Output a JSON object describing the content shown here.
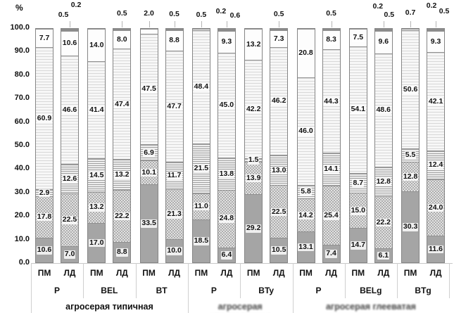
{
  "chart_data": {
    "type": "stacked-bar",
    "title": "",
    "ylabel": "%",
    "ylim": [
      0,
      100
    ],
    "grid": false,
    "legend": "none",
    "y_ticks": [
      "100.0",
      "90.0",
      "80.0",
      "70.0",
      "60.0",
      "50.0",
      "40.0",
      "30.0",
      "20.0",
      "10.0",
      "0.0"
    ],
    "pattern_key": {
      "solid": "dark gray solid (bottom series)",
      "dots": "light gray dotted",
      "hlines": "gray horizontal hatch",
      "flines": "very light fine horizontal hatch (largest series)",
      "white": "white (top series)",
      "cap": "dark gray thin cap (trace series)"
    },
    "groups": [
      {
        "label": "P",
        "section": 0,
        "bars": [
          {
            "sub": "ПМ",
            "segments": [
              {
                "v": 10.6,
                "p": "solid",
                "label": "10.6"
              },
              {
                "v": 17.8,
                "p": "dots",
                "label": "17.8"
              },
              {
                "v": 2.9,
                "p": "hlines",
                "label": "2.9"
              },
              {
                "v": 60.9,
                "p": "flines",
                "label": "60.9"
              },
              {
                "v": 7.7,
                "p": "white",
                "label": "7.7"
              }
            ],
            "top_labels": []
          },
          {
            "sub": "ЛД",
            "segments": [
              {
                "v": 7.0,
                "p": "solid",
                "label": "7.0"
              },
              {
                "v": 22.5,
                "p": "dots",
                "label": "22.5"
              },
              {
                "v": 12.6,
                "p": "hlines",
                "label": "12.6"
              },
              {
                "v": 46.6,
                "p": "flines",
                "label": "46.6"
              },
              {
                "v": 10.6,
                "p": "white",
                "label": "10.6"
              },
              {
                "v": 0.5,
                "p": "cap",
                "label": null
              },
              {
                "v": 0.2,
                "p": "cap",
                "label": null
              }
            ],
            "top_labels": [
              {
                "text": "0.2",
                "dx": 9,
                "dy": 1
              },
              {
                "text": "0.5",
                "dx": -9,
                "dy": 15
              }
            ]
          }
        ]
      },
      {
        "label": "BEL",
        "section": 0,
        "bars": [
          {
            "sub": "ПМ",
            "segments": [
              {
                "v": 17.0,
                "p": "solid",
                "label": "17.0"
              },
              {
                "v": 13.2,
                "p": "dots",
                "label": "13.2"
              },
              {
                "v": 14.5,
                "p": "hlines",
                "label": "14.5"
              },
              {
                "v": 41.4,
                "p": "flines",
                "label": "41.4"
              },
              {
                "v": 14.0,
                "p": "white",
                "label": "14.0"
              }
            ],
            "top_labels": []
          },
          {
            "sub": "ЛД",
            "segments": [
              {
                "v": 8.8,
                "p": "solid",
                "label": "8.8"
              },
              {
                "v": 22.2,
                "p": "dots",
                "label": "22.2"
              },
              {
                "v": 13.2,
                "p": "hlines",
                "label": "13.2"
              },
              {
                "v": 47.4,
                "p": "flines",
                "label": "47.4"
              },
              {
                "v": 8.0,
                "p": "white",
                "label": "8.0"
              },
              {
                "v": 0.5,
                "p": "cap",
                "label": null
              }
            ],
            "top_labels": [
              {
                "text": "0.5",
                "dx": 0,
                "dy": 13
              }
            ]
          }
        ]
      },
      {
        "label": "BT",
        "section": 0,
        "bars": [
          {
            "sub": "ПМ",
            "segments": [
              {
                "v": 33.5,
                "p": "solid",
                "label": "33.5"
              },
              {
                "v": 10.1,
                "p": "dots",
                "label": "10.1"
              },
              {
                "v": 6.9,
                "p": "hlines",
                "label": "6.9"
              },
              {
                "v": 47.5,
                "p": "flines",
                "label": "47.5"
              },
              {
                "v": 2.0,
                "p": "white",
                "label": null
              }
            ],
            "top_labels": [
              {
                "text": "2.0",
                "dx": 0,
                "dy": 13
              }
            ]
          },
          {
            "sub": "ЛД",
            "segments": [
              {
                "v": 10.0,
                "p": "solid",
                "label": "10.0"
              },
              {
                "v": 21.3,
                "p": "dots",
                "label": "21.3"
              },
              {
                "v": 11.7,
                "p": "hlines",
                "label": "11.7"
              },
              {
                "v": 47.7,
                "p": "flines",
                "label": "47.7"
              },
              {
                "v": 8.8,
                "p": "white",
                "label": "8.8"
              },
              {
                "v": 0.5,
                "p": "cap",
                "label": null
              }
            ],
            "top_labels": [
              {
                "text": "0.5",
                "dx": 0,
                "dy": 14
              }
            ]
          }
        ]
      },
      {
        "label": "P",
        "section": 1,
        "bars": [
          {
            "sub": "ПМ",
            "segments": [
              {
                "v": 18.5,
                "p": "solid",
                "label": "18.5"
              },
              {
                "v": 11.0,
                "p": "dots",
                "label": "11.0"
              },
              {
                "v": 21.5,
                "p": "hlines",
                "label": "21.5"
              },
              {
                "v": 48.4,
                "p": "flines",
                "label": "48.4"
              },
              {
                "v": 0.5,
                "p": "white",
                "label": null
              }
            ],
            "top_labels": [
              {
                "text": "0.5",
                "dx": 0,
                "dy": 15
              }
            ]
          },
          {
            "sub": "ЛД",
            "segments": [
              {
                "v": 6.4,
                "p": "solid",
                "label": "6.4"
              },
              {
                "v": 24.8,
                "p": "dots",
                "label": "24.8"
              },
              {
                "v": 13.8,
                "p": "hlines",
                "label": "13.8"
              },
              {
                "v": 45.0,
                "p": "flines",
                "label": "45.0"
              },
              {
                "v": 9.3,
                "p": "white",
                "label": "9.3"
              },
              {
                "v": 0.6,
                "p": "cap",
                "label": null
              },
              {
                "v": 0.2,
                "p": "cap",
                "label": null
              }
            ],
            "top_labels": [
              {
                "text": "0.2",
                "dx": -8,
                "dy": 10
              },
              {
                "text": "0.6",
                "dx": 12,
                "dy": 16
              }
            ]
          }
        ]
      },
      {
        "label": "BTy",
        "section": 1,
        "bars": [
          {
            "sub": "ПМ",
            "segments": [
              {
                "v": 29.2,
                "p": "solid",
                "label": "29.2"
              },
              {
                "v": 13.9,
                "p": "dots",
                "label": "13.9"
              },
              {
                "v": 1.5,
                "p": "hlines",
                "label": "1.5"
              },
              {
                "v": 42.2,
                "p": "flines",
                "label": "42.2"
              },
              {
                "v": 13.2,
                "p": "white",
                "label": "13.2"
              }
            ],
            "top_labels": []
          },
          {
            "sub": "ЛД",
            "segments": [
              {
                "v": 10.5,
                "p": "solid",
                "label": "10.5"
              },
              {
                "v": 22.5,
                "p": "dots",
                "label": "22.5"
              },
              {
                "v": 13.0,
                "p": "hlines",
                "label": "13.0"
              },
              {
                "v": 46.2,
                "p": "flines",
                "label": "46.2"
              },
              {
                "v": 7.3,
                "p": "white",
                "label": "7.3"
              },
              {
                "v": 0.5,
                "p": "cap",
                "label": null
              }
            ],
            "top_labels": [
              {
                "text": "0.5",
                "dx": 0,
                "dy": 14
              }
            ]
          }
        ]
      },
      {
        "label": "P",
        "section": 2,
        "bars": [
          {
            "sub": "ПМ",
            "segments": [
              {
                "v": 13.1,
                "p": "solid",
                "label": "13.1"
              },
              {
                "v": 14.2,
                "p": "dots",
                "label": "14.2"
              },
              {
                "v": 5.8,
                "p": "hlines",
                "label": "5.8"
              },
              {
                "v": 46.0,
                "p": "flines",
                "label": "46.0"
              },
              {
                "v": 20.8,
                "p": "white",
                "label": "20.8"
              }
            ],
            "top_labels": []
          },
          {
            "sub": "ЛД",
            "segments": [
              {
                "v": 7.4,
                "p": "solid",
                "label": "7.4"
              },
              {
                "v": 25.4,
                "p": "dots",
                "label": "25.4"
              },
              {
                "v": 14.1,
                "p": "hlines",
                "label": "14.1"
              },
              {
                "v": 44.3,
                "p": "flines",
                "label": "44.3"
              },
              {
                "v": 8.3,
                "p": "white",
                "label": "8.3"
              },
              {
                "v": 0.5,
                "p": "cap",
                "label": null
              }
            ],
            "top_labels": [
              {
                "text": "0.5",
                "dx": 0,
                "dy": 13
              }
            ]
          }
        ]
      },
      {
        "label": "BELg",
        "section": 2,
        "bars": [
          {
            "sub": "ПМ",
            "segments": [
              {
                "v": 14.7,
                "p": "solid",
                "label": "14.7"
              },
              {
                "v": 15.0,
                "p": "dots",
                "label": "15.0"
              },
              {
                "v": 8.7,
                "p": "hlines",
                "label": "8.7"
              },
              {
                "v": 54.1,
                "p": "flines",
                "label": "54.1"
              },
              {
                "v": 7.5,
                "p": "white",
                "label": "7.5"
              }
            ],
            "top_labels": []
          },
          {
            "sub": "ЛД",
            "segments": [
              {
                "v": 6.1,
                "p": "solid",
                "label": "6.1"
              },
              {
                "v": 22.2,
                "p": "dots",
                "label": "22.2"
              },
              {
                "v": 12.8,
                "p": "hlines",
                "label": "12.8"
              },
              {
                "v": 48.6,
                "p": "flines",
                "label": "48.6"
              },
              {
                "v": 9.6,
                "p": "white",
                "label": "9.6"
              },
              {
                "v": 0.5,
                "p": "cap",
                "label": null
              },
              {
                "v": 0.2,
                "p": "cap",
                "label": null
              }
            ],
            "top_labels": [
              {
                "text": "0.2",
                "dx": -8,
                "dy": 3
              },
              {
                "text": "0.5",
                "dx": 8,
                "dy": 15
              }
            ]
          }
        ]
      },
      {
        "label": "BTg",
        "section": 2,
        "bars": [
          {
            "sub": "ПМ",
            "segments": [
              {
                "v": 30.3,
                "p": "solid",
                "label": "30.3"
              },
              {
                "v": 12.8,
                "p": "dots",
                "label": "12.8"
              },
              {
                "v": 5.5,
                "p": "hlines",
                "label": "5.5"
              },
              {
                "v": 50.6,
                "p": "flines",
                "label": "50.6"
              },
              {
                "v": 0.7,
                "p": "white",
                "label": null
              }
            ],
            "top_labels": [
              {
                "text": "0.7",
                "dx": 0,
                "dy": 12
              }
            ]
          },
          {
            "sub": "ЛД",
            "segments": [
              {
                "v": 11.6,
                "p": "solid",
                "label": "11.6"
              },
              {
                "v": 24.0,
                "p": "dots",
                "label": "24.0"
              },
              {
                "v": 12.4,
                "p": "hlines",
                "label": "12.4"
              },
              {
                "v": 42.1,
                "p": "flines",
                "label": "42.1"
              },
              {
                "v": 9.3,
                "p": "white",
                "label": "9.3"
              },
              {
                "v": 0.5,
                "p": "cap",
                "label": null
              },
              {
                "v": 0.2,
                "p": "cap",
                "label": null
              }
            ],
            "top_labels": [
              {
                "text": "0.2",
                "dx": -6,
                "dy": 2
              },
              {
                "text": "0.5",
                "dx": 12,
                "dy": 10
              }
            ]
          }
        ]
      }
    ],
    "soil_sections": [
      {
        "label": "агросерая типичная",
        "blurred": false
      },
      {
        "label": "агросерая оподзоленная",
        "blurred": true
      },
      {
        "label": "агросерая глееватая",
        "blurred": true
      }
    ]
  }
}
